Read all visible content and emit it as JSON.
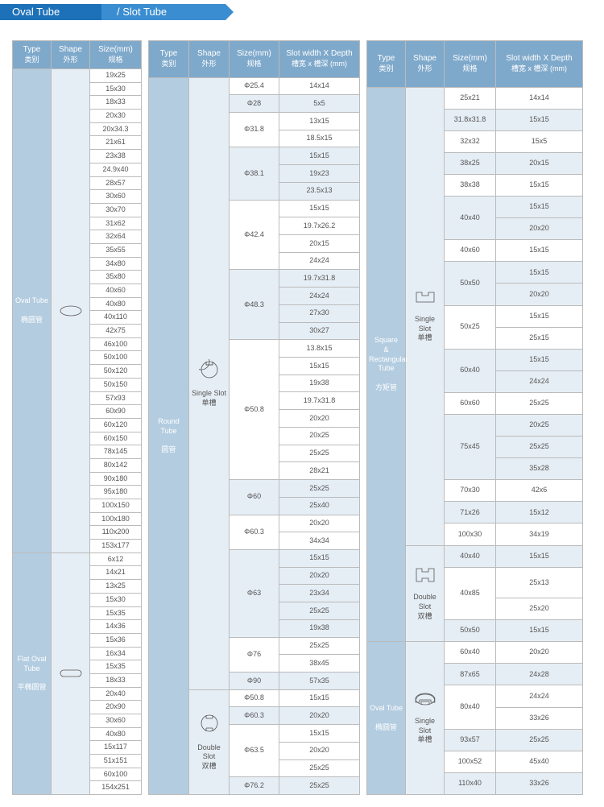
{
  "header": {
    "title1": "Oval Tube",
    "title2": "/ Slot Tube"
  },
  "headers": {
    "type": "Type",
    "type_cn": "类别",
    "shape": "Shape",
    "shape_cn": "外形",
    "size": "Size(mm)",
    "size_cn": "规格",
    "slot": "Slot width X Depth",
    "slot_cn": "槽宽 x 槽深 (mm)"
  },
  "t1": {
    "ovaltube": {
      "name": "Oval Tube",
      "cn": "椭圆管",
      "sizes": [
        "19x25",
        "15x30",
        "18x33",
        "20x30",
        "20x34.3",
        "21x61",
        "23x38",
        "24.9x40",
        "28x57",
        "30x60",
        "30x70",
        "31x62",
        "32x64",
        "35x55",
        "34x80",
        "35x80",
        "40x60",
        "40x80",
        "40x110",
        "42x75",
        "46x100",
        "50x100",
        "50x120",
        "50x150",
        "57x93",
        "60x90",
        "60x120",
        "60x150",
        "78x145",
        "80x142",
        "90x180",
        "95x180",
        "100x150",
        "100x180",
        "110x200",
        "153x177"
      ]
    },
    "flatoval": {
      "name": "Flat Oval Tube",
      "cn": "平椭圆管",
      "sizes": [
        "6x12",
        "14x21",
        "13x25",
        "15x30",
        "15x35",
        "14x36",
        "15x36",
        "16x34",
        "15x35",
        "18x33",
        "20x40",
        "20x90",
        "30x60",
        "40x80",
        "15x117",
        "51x151",
        "60x100",
        "154x251"
      ]
    }
  },
  "t2": {
    "round": {
      "name": "Round Tube",
      "cn": "圆管",
      "single_label": "Single Slot",
      "single_cn": "单槽",
      "double_label": "Double Slot",
      "double_cn": "双槽",
      "single": [
        {
          "size": "Φ25.4",
          "slots": [
            "14x14"
          ],
          "shade": false
        },
        {
          "size": "Φ28",
          "slots": [
            "5x5"
          ],
          "shade": true
        },
        {
          "size": "Φ31.8",
          "slots": [
            "13x15",
            "18.5x15"
          ],
          "shade": false
        },
        {
          "size": "Φ38.1",
          "slots": [
            "15x15",
            "19x23",
            "23.5x13"
          ],
          "shade": true
        },
        {
          "size": "Φ42.4",
          "slots": [
            "15x15",
            "19.7x26.2",
            "20x15",
            "24x24"
          ],
          "shade": false
        },
        {
          "size": "Φ48.3",
          "slots": [
            "19.7x31.8",
            "24x24",
            "27x30",
            "30x27"
          ],
          "shade": true
        },
        {
          "size": "Φ50.8",
          "slots": [
            "13.8x15",
            "15x15",
            "19x38",
            "19.7x31.8",
            "20x20",
            "20x25",
            "25x25",
            "28x21"
          ],
          "shade": false
        },
        {
          "size": "Φ60",
          "slots": [
            "25x25",
            "25x40"
          ],
          "shade": true
        },
        {
          "size": "Φ60.3",
          "slots": [
            "20x20",
            "34x34"
          ],
          "shade": false
        },
        {
          "size": "Φ63",
          "slots": [
            "15x15",
            "20x20",
            "23x34",
            "25x25",
            "19x38"
          ],
          "shade": true
        },
        {
          "size": "Φ76",
          "slots": [
            "25x25",
            "38x45"
          ],
          "shade": false
        },
        {
          "size": "Φ90",
          "slots": [
            "57x35"
          ],
          "shade": true
        }
      ],
      "double": [
        {
          "size": "Φ50.8",
          "slots": [
            "15x15"
          ],
          "shade": false
        },
        {
          "size": "Φ60.3",
          "slots": [
            "20x20"
          ],
          "shade": true
        },
        {
          "size": "Φ63.5",
          "slots": [
            "15x15",
            "20x20",
            "25x25"
          ],
          "shade": false
        },
        {
          "size": "Φ76.2",
          "slots": [
            "25x25"
          ],
          "shade": true
        }
      ]
    }
  },
  "t3": {
    "sqrect": {
      "name": "Square & Rectangular Tube",
      "cn": "方矩管",
      "single_label": "Single Slot",
      "single_cn": "单槽",
      "double_label": "Double Slot",
      "double_cn": "双槽",
      "single": [
        {
          "size": "25x21",
          "slots": [
            "14x14"
          ],
          "shade": false
        },
        {
          "size": "31.8x31.8",
          "slots": [
            "15x15"
          ],
          "shade": true
        },
        {
          "size": "32x32",
          "slots": [
            "15x5"
          ],
          "shade": false
        },
        {
          "size": "38x25",
          "slots": [
            "20x15"
          ],
          "shade": true
        },
        {
          "size": "38x38",
          "slots": [
            "15x15"
          ],
          "shade": false
        },
        {
          "size": "40x40",
          "slots": [
            "15x15",
            "20x20"
          ],
          "shade": true
        },
        {
          "size": "40x60",
          "slots": [
            "15x15"
          ],
          "shade": false
        },
        {
          "size": "50x50",
          "slots": [
            "15x15",
            "20x20"
          ],
          "shade": true
        },
        {
          "size": "50x25",
          "slots": [
            "15x15",
            "25x15"
          ],
          "shade": false
        },
        {
          "size": "60x40",
          "slots": [
            "15x15",
            "24x24"
          ],
          "shade": true
        },
        {
          "size": "60x60",
          "slots": [
            "25x25"
          ],
          "shade": false
        },
        {
          "size": "75x45",
          "slots": [
            "20x25",
            "25x25",
            "35x28"
          ],
          "shade": true
        },
        {
          "size": "70x30",
          "slots": [
            "42x6"
          ],
          "shade": false
        },
        {
          "size": "71x26",
          "slots": [
            "15x12"
          ],
          "shade": true
        },
        {
          "size": "100x30",
          "slots": [
            "34x19"
          ],
          "shade": false
        }
      ],
      "double": [
        {
          "size": "40x40",
          "slots": [
            "15x15"
          ],
          "shade": true
        },
        {
          "size": "40x85",
          "slots": [
            "25x13",
            "25x20"
          ],
          "shade": false
        },
        {
          "size": "50x50",
          "slots": [
            "15x15"
          ],
          "shade": true
        }
      ]
    },
    "ovaltube": {
      "name": "Oval Tube",
      "cn": "椭圆管",
      "label": "Single Slot",
      "label_cn": "单槽",
      "rows": [
        {
          "size": "60x40",
          "slots": [
            "20x20"
          ],
          "shade": false
        },
        {
          "size": "87x65",
          "slots": [
            "24x28"
          ],
          "shade": true
        },
        {
          "size": "80x40",
          "slots": [
            "24x24",
            "33x26"
          ],
          "shade": false
        },
        {
          "size": "93x57",
          "slots": [
            "25x25"
          ],
          "shade": true
        },
        {
          "size": "100x52",
          "slots": [
            "45x40"
          ],
          "shade": false
        },
        {
          "size": "110x40",
          "slots": [
            "33x26"
          ],
          "shade": true
        }
      ]
    }
  },
  "style": {
    "header_bg": "#7fa9cb",
    "type_bg": "#b3cce0",
    "shade_bg": "#e6eef5",
    "border": "#bbb"
  }
}
